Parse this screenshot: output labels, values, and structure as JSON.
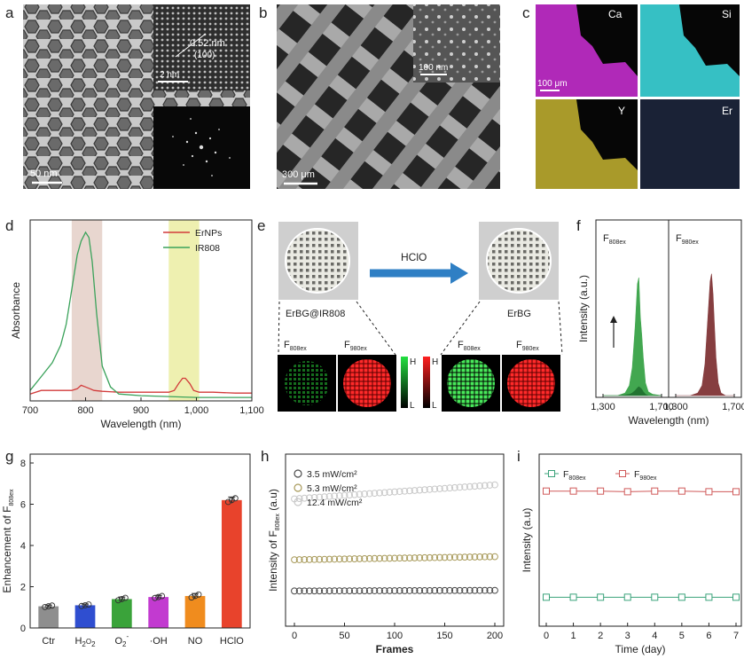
{
  "panels": {
    "a": {
      "label": "a",
      "scale": "50 nm",
      "inset_scale": "2 nm",
      "lattice": "0.52 nm",
      "plane": "(100)"
    },
    "b": {
      "label": "b",
      "scale": "300 μm",
      "inset_scale": "100 nm"
    },
    "c": {
      "label": "c",
      "scale": "100 μm",
      "maps": [
        "Ca",
        "Si",
        "Y",
        "Er"
      ],
      "colors": [
        "#b029b8",
        "#36c0c4",
        "#a99a2a",
        "#3c4b74"
      ]
    },
    "e": {
      "label": "e",
      "arrow_text": "HClO",
      "left_name": "ErBG@IR808",
      "right_name": "ErBG",
      "f_prefix": "F",
      "sub808": "808ex",
      "sub980": "980ex",
      "high": "H",
      "low": "L"
    }
  },
  "chart_data": [
    {
      "panel": "d",
      "type": "line",
      "title": "",
      "xlabel": "Wavelength (nm)",
      "ylabel": "Absorbance",
      "xlim": [
        700,
        1100
      ],
      "ylim": [
        0,
        1
      ],
      "xticks": [
        "700",
        "800",
        "900",
        "1,000",
        "1,100"
      ],
      "highlight_bands": [
        {
          "from": 775,
          "to": 830,
          "color": "#e8d6cf"
        },
        {
          "from": 950,
          "to": 1005,
          "color": "#eef0b0"
        }
      ],
      "series": [
        {
          "name": "ErNPs",
          "color": "#d23a3a",
          "x": [
            700,
            720,
            740,
            760,
            775,
            785,
            792,
            800,
            808,
            815,
            830,
            860,
            900,
            930,
            950,
            960,
            968,
            975,
            980,
            988,
            995,
            1005,
            1030,
            1070,
            1100
          ],
          "y": [
            0.04,
            0.06,
            0.06,
            0.06,
            0.06,
            0.07,
            0.09,
            0.08,
            0.07,
            0.06,
            0.055,
            0.05,
            0.05,
            0.05,
            0.05,
            0.06,
            0.1,
            0.13,
            0.13,
            0.1,
            0.06,
            0.05,
            0.05,
            0.045,
            0.045
          ]
        },
        {
          "name": "IR808",
          "color": "#3aa25a",
          "x": [
            700,
            720,
            740,
            755,
            765,
            775,
            785,
            792,
            800,
            806,
            812,
            820,
            830,
            845,
            860,
            900,
            950,
            1000,
            1050,
            1100
          ],
          "y": [
            0.06,
            0.14,
            0.22,
            0.32,
            0.44,
            0.64,
            0.84,
            0.92,
            0.97,
            0.94,
            0.8,
            0.5,
            0.2,
            0.08,
            0.04,
            0.03,
            0.025,
            0.02,
            0.02,
            0.02
          ]
        }
      ]
    },
    {
      "panel": "f",
      "type": "area",
      "xlabel": "Wavelength (nm)",
      "ylabel": "Intensity (a.u.)",
      "xticks": [
        "1,300",
        "1,700",
        "1,300",
        "1,700"
      ],
      "subpanels": [
        {
          "title": "F",
          "sub": "808ex"
        },
        {
          "title": "F",
          "sub": "980ex"
        }
      ],
      "x": [
        1300,
        1400,
        1450,
        1480,
        1500,
        1520,
        1535,
        1545,
        1555,
        1565,
        1575,
        1590,
        1610,
        1640,
        1700
      ],
      "series": [
        {
          "name": "F808ex increasing",
          "color": "#2e9e3e",
          "subpanel": 0,
          "y": [
            0,
            0,
            0.02,
            0.08,
            0.22,
            0.55,
            0.88,
            0.93,
            0.62,
            0.48,
            0.3,
            0.1,
            0.03,
            0.01,
            0
          ]
        },
        {
          "name": "F808ex low",
          "color": "#1f6e2e",
          "subpanel": 0,
          "y": [
            0,
            0,
            0.005,
            0.01,
            0.02,
            0.04,
            0.06,
            0.07,
            0.06,
            0.05,
            0.03,
            0.01,
            0,
            0,
            0
          ]
        },
        {
          "name": "F980ex",
          "color": "#7a2a2c",
          "subpanel": 1,
          "y": [
            0,
            0,
            0.02,
            0.08,
            0.25,
            0.62,
            0.9,
            0.96,
            0.8,
            0.55,
            0.3,
            0.1,
            0.02,
            0,
            0
          ]
        }
      ]
    },
    {
      "panel": "g",
      "type": "bar",
      "categories": [
        "Ctr",
        "H2O2",
        "O2-",
        "·OH",
        "NO",
        "HClO"
      ],
      "values": [
        1.05,
        1.1,
        1.4,
        1.5,
        1.55,
        6.2
      ],
      "errors": [
        0.06,
        0.06,
        0.1,
        0.08,
        0.12,
        0.15
      ],
      "colors": [
        "#8e8e8e",
        "#2f4ed0",
        "#3aa33a",
        "#c23ad0",
        "#f08c1e",
        "#e8432c"
      ],
      "ylabel": "Enhancement of F808ex",
      "ylim": [
        0,
        8
      ],
      "yticks": [
        "0",
        "2",
        "4",
        "6",
        "8"
      ]
    },
    {
      "panel": "h",
      "type": "scatter",
      "xlabel": "Frames",
      "ylabel": "Intensity of F808ex (a.u)",
      "xlim": [
        0,
        200
      ],
      "xticks": [
        "0",
        "50",
        "100",
        "150",
        "200"
      ],
      "ylim": [
        0,
        5
      ],
      "series": [
        {
          "name": "3.5 mW/cm²",
          "color": "#4a4a4a",
          "y0": 0.9,
          "y1": 0.92
        },
        {
          "name": "5.3 mW/cm²",
          "color": "#a89a5a",
          "y0": 1.9,
          "y1": 2.0
        },
        {
          "name": "12.4 mW/cm²",
          "color": "#c8c8c8",
          "y0": 3.85,
          "y1": 4.3
        }
      ]
    },
    {
      "panel": "i",
      "type": "line",
      "xlabel": "Time (day)",
      "ylabel": "Intensity (a.u)",
      "x": [
        0,
        1,
        2,
        3,
        4,
        5,
        6,
        7
      ],
      "xticks": [
        "0",
        "1",
        "2",
        "3",
        "4",
        "5",
        "6",
        "7"
      ],
      "ylim": [
        0,
        5
      ],
      "series": [
        {
          "name": "F808ex",
          "color": "#3aa27a",
          "values": [
            0.7,
            0.7,
            0.7,
            0.7,
            0.7,
            0.7,
            0.7,
            0.7
          ]
        },
        {
          "name": "F980ex",
          "color": "#d05a5a",
          "values": [
            4.1,
            4.1,
            4.1,
            4.08,
            4.1,
            4.1,
            4.08,
            4.08
          ]
        }
      ]
    }
  ]
}
